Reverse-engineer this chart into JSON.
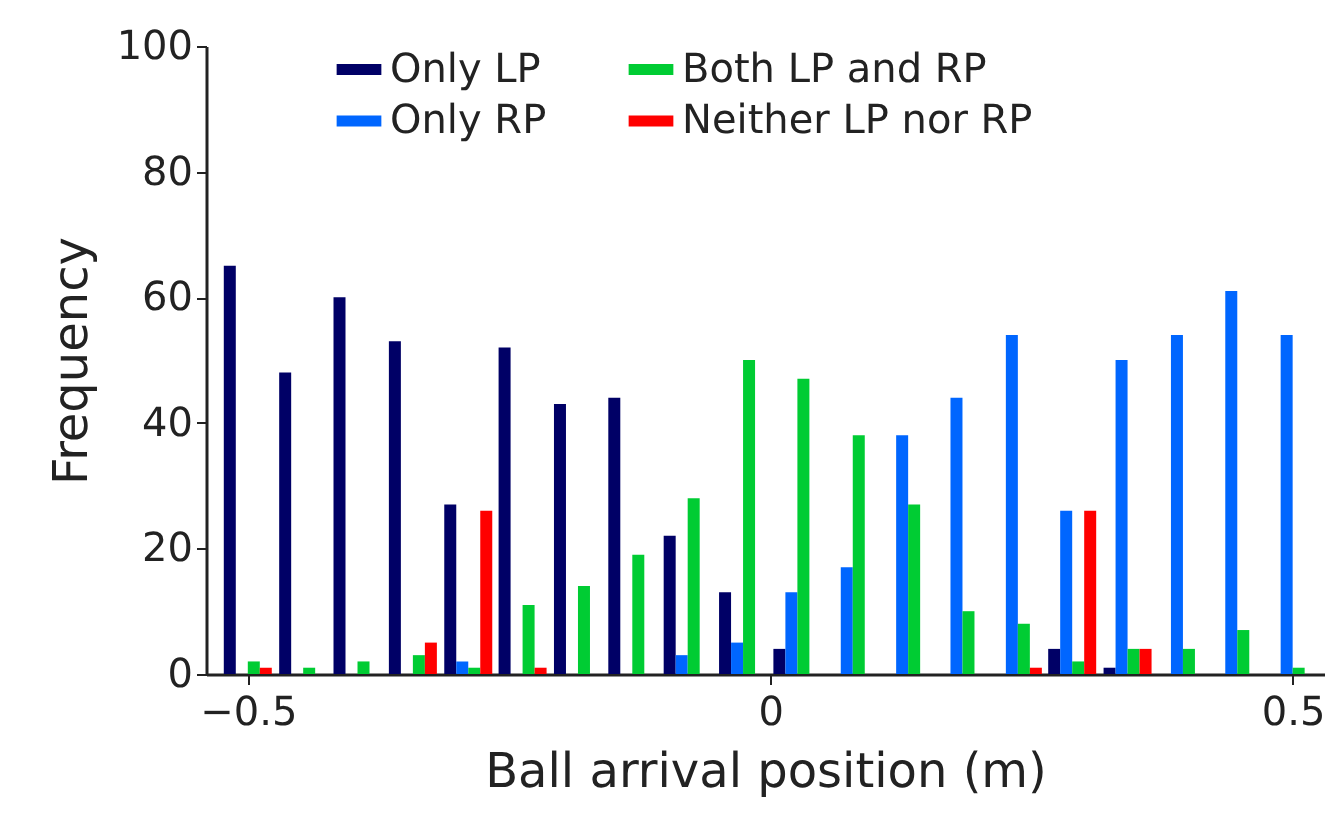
{
  "chart_data": {
    "type": "bar",
    "xlabel": "Ball arrival position (m)",
    "ylabel": "Frequency",
    "x": [
      -0.5,
      -0.447,
      -0.395,
      -0.342,
      -0.289,
      -0.237,
      -0.184,
      -0.132,
      -0.079,
      -0.026,
      0.026,
      0.079,
      0.132,
      0.184,
      0.237,
      0.289,
      0.342,
      0.395,
      0.447,
      0.5
    ],
    "series": [
      {
        "name": "Only LP",
        "color": "#000066",
        "values": [
          65,
          48,
          60,
          53,
          27,
          52,
          43,
          44,
          22,
          13,
          4,
          0,
          0,
          0,
          0,
          4,
          1,
          0,
          0,
          0
        ]
      },
      {
        "name": "Only RP",
        "color": "#0066ff",
        "values": [
          0,
          0,
          0,
          0,
          2,
          0,
          0,
          0,
          3,
          5,
          13,
          17,
          38,
          44,
          54,
          26,
          50,
          54,
          61,
          54
        ]
      },
      {
        "name": "Both LP and RP",
        "color": "#00cc33",
        "values": [
          2,
          1,
          2,
          3,
          1,
          11,
          14,
          19,
          28,
          50,
          47,
          38,
          27,
          10,
          8,
          2,
          4,
          4,
          7,
          1
        ]
      },
      {
        "name": "Neither LP nor RP",
        "color": "#ff0000",
        "values": [
          1,
          0,
          0,
          5,
          26,
          1,
          0,
          0,
          0,
          0,
          0,
          0,
          0,
          0,
          1,
          26,
          4,
          0,
          0,
          0
        ]
      }
    ],
    "xlim": [
      -0.54,
      0.53
    ],
    "xticks": [
      {
        "value": -0.5,
        "label": "−0.5"
      },
      0,
      0.5
    ],
    "ylim": [
      0,
      100
    ],
    "yticks": [
      0,
      20,
      40,
      60,
      80,
      100
    ],
    "legend": "top",
    "grid": false
  }
}
